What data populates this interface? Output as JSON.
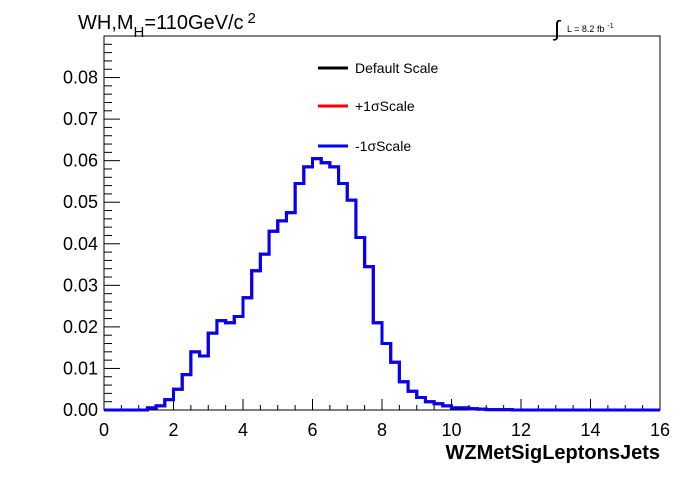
{
  "chart_data": {
    "type": "line",
    "title_parts": {
      "base": "WH,M",
      "sub": "H",
      "rest": "=110GeV/c",
      "sup": "2"
    },
    "lumi_label": {
      "integral": "∫",
      "text": "L = 8.2 fb",
      "sup": "-1"
    },
    "xlabel": "WZMetSigLeptonsJets",
    "ylabel": "",
    "xlim": [
      0,
      16
    ],
    "ylim": [
      0,
      0.09
    ],
    "x_ticks": [
      0,
      2,
      4,
      6,
      8,
      10,
      12,
      14,
      16
    ],
    "y_ticks": [
      0.0,
      0.01,
      0.02,
      0.03,
      0.04,
      0.05,
      0.06,
      0.07,
      0.08
    ],
    "y_tick_labels": [
      "0.00",
      "0.01",
      "0.02",
      "0.03",
      "0.04",
      "0.05",
      "0.06",
      "0.07",
      "0.08"
    ],
    "grid": false,
    "legend_position": "top-center",
    "bin_width": 0.25,
    "bin_edges_start": 0,
    "series": [
      {
        "name": "Default Scale",
        "color": "#000000",
        "values": [
          0,
          0,
          0,
          0,
          0,
          0.0005,
          0.001,
          0.0025,
          0.005,
          0.0085,
          0.014,
          0.013,
          0.0185,
          0.0215,
          0.021,
          0.0225,
          0.027,
          0.0335,
          0.0375,
          0.043,
          0.0455,
          0.0475,
          0.0545,
          0.0585,
          0.0605,
          0.0595,
          0.0585,
          0.0545,
          0.0505,
          0.0415,
          0.0345,
          0.021,
          0.016,
          0.0115,
          0.0068,
          0.0045,
          0.003,
          0.002,
          0.0015,
          0.001,
          0.0005,
          0.0005,
          0.0003,
          0.0002,
          0.0001,
          0.0001,
          0.0001,
          0,
          0,
          0,
          0,
          0,
          0,
          0,
          0,
          0,
          0,
          0,
          0,
          0,
          0,
          0,
          0,
          0
        ]
      },
      {
        "name": "+1σScale",
        "color": "#ff0000",
        "values": [
          0,
          0,
          0,
          0,
          0,
          0.0005,
          0.001,
          0.0025,
          0.005,
          0.0085,
          0.014,
          0.013,
          0.0185,
          0.0215,
          0.021,
          0.0225,
          0.027,
          0.0335,
          0.0375,
          0.043,
          0.0455,
          0.0475,
          0.0545,
          0.0585,
          0.0605,
          0.0595,
          0.0585,
          0.0545,
          0.0505,
          0.0415,
          0.0345,
          0.021,
          0.016,
          0.0115,
          0.0068,
          0.0045,
          0.003,
          0.002,
          0.0015,
          0.001,
          0.0005,
          0.0005,
          0.0003,
          0.0002,
          0.0001,
          0.0001,
          0.0001,
          0,
          0,
          0,
          0,
          0,
          0,
          0,
          0,
          0,
          0,
          0,
          0,
          0,
          0,
          0,
          0,
          0
        ]
      },
      {
        "name": "-1σScale",
        "color": "#0000ff",
        "values": [
          0,
          0,
          0,
          0,
          0,
          0.0005,
          0.001,
          0.0025,
          0.005,
          0.0085,
          0.014,
          0.013,
          0.0185,
          0.0215,
          0.021,
          0.0225,
          0.027,
          0.0335,
          0.0375,
          0.043,
          0.0455,
          0.0475,
          0.0545,
          0.0585,
          0.0605,
          0.0595,
          0.0585,
          0.0545,
          0.0505,
          0.0415,
          0.0345,
          0.021,
          0.016,
          0.0115,
          0.0068,
          0.0045,
          0.003,
          0.002,
          0.0015,
          0.001,
          0.0005,
          0.0005,
          0.0003,
          0.0002,
          0.0001,
          0.0001,
          0.0001,
          0,
          0,
          0,
          0,
          0,
          0,
          0,
          0,
          0,
          0,
          0,
          0,
          0,
          0,
          0,
          0,
          0
        ]
      }
    ]
  }
}
